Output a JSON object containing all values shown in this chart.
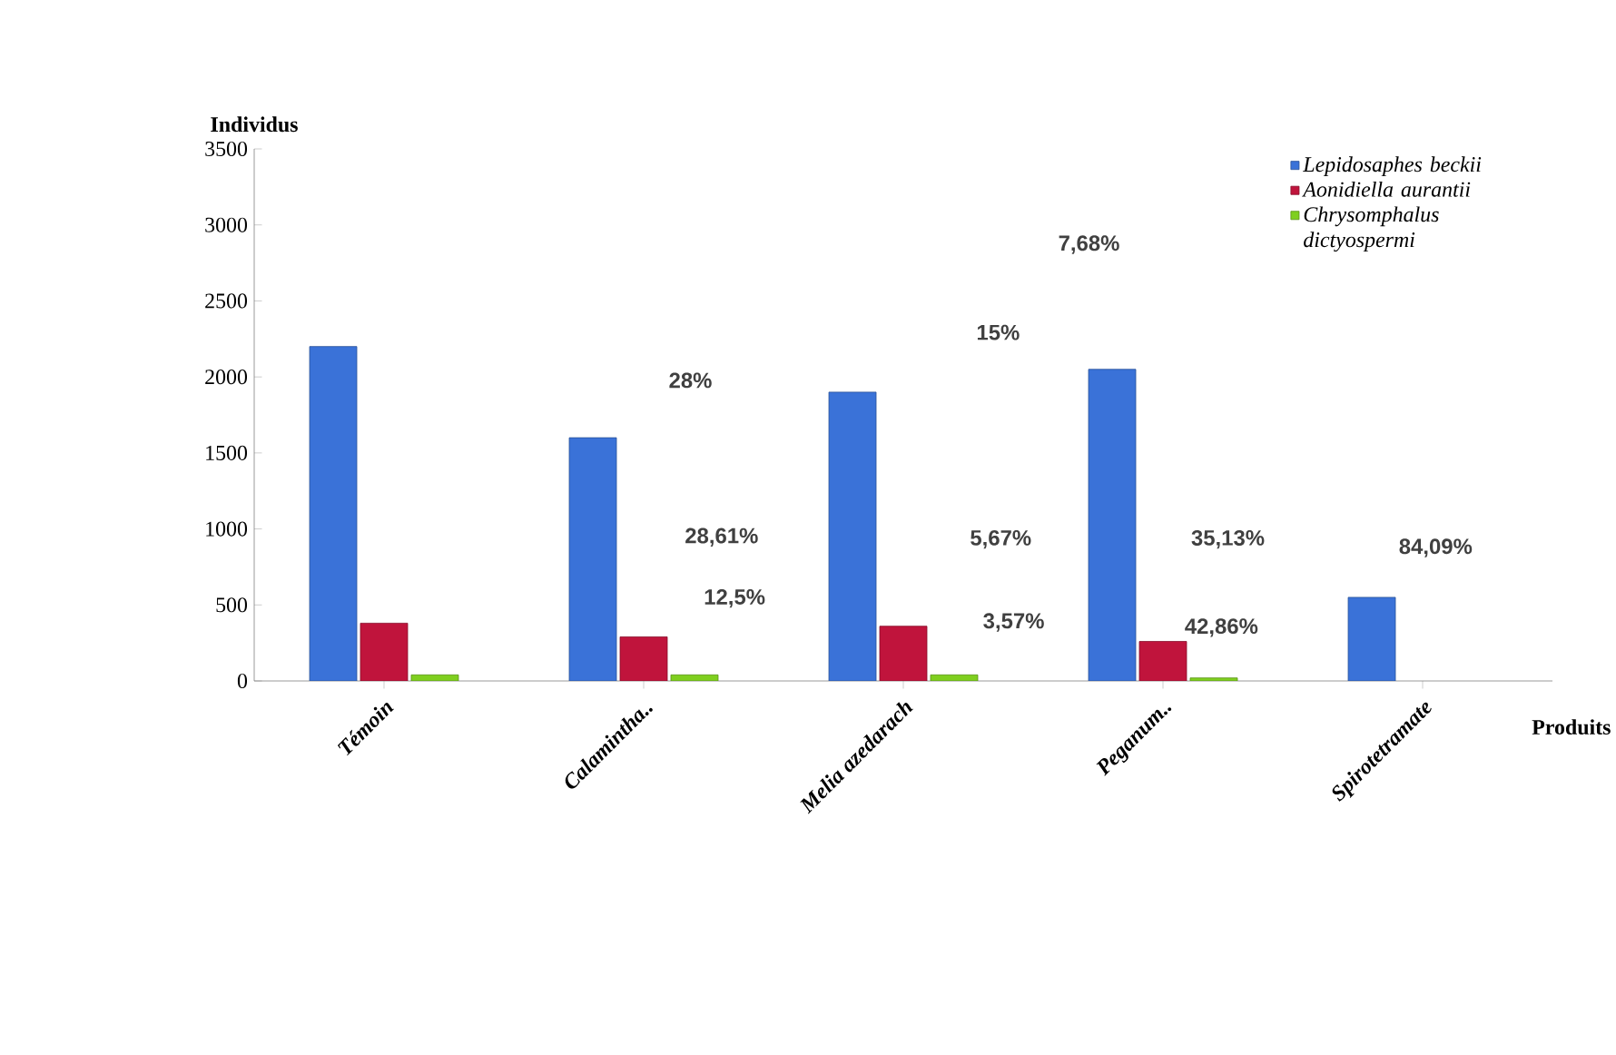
{
  "chart_data": {
    "type": "bar",
    "ylabel": "Individus",
    "xlabel": "Produits",
    "categories": [
      "Témoin",
      "Calamintha..",
      "Melia azedarach",
      "Peganum..",
      "Spirotetramate"
    ],
    "series": [
      {
        "name": "Lepidosaphes beckii",
        "color": "#3a72d8",
        "values": [
          2200,
          1600,
          1900,
          2050,
          550
        ]
      },
      {
        "name": "Aonidiella aurantii",
        "color": "#c0143c",
        "values": [
          380,
          290,
          360,
          260,
          null
        ]
      },
      {
        "name": "Chrysomphalus dictyospermi",
        "color": "#7fcf1f",
        "values": [
          40,
          40,
          40,
          20,
          null
        ]
      }
    ],
    "ylim": [
      0,
      3500
    ],
    "yticks": [
      0,
      500,
      1000,
      1500,
      2000,
      2500,
      3000,
      3500
    ],
    "legend": "top right",
    "annotations": [
      "28%",
      "28,61%",
      "12,5%",
      "15%",
      "5,67%",
      "3,57%",
      "7,68%",
      "35,13%",
      "42,86%",
      "84,09%"
    ]
  }
}
